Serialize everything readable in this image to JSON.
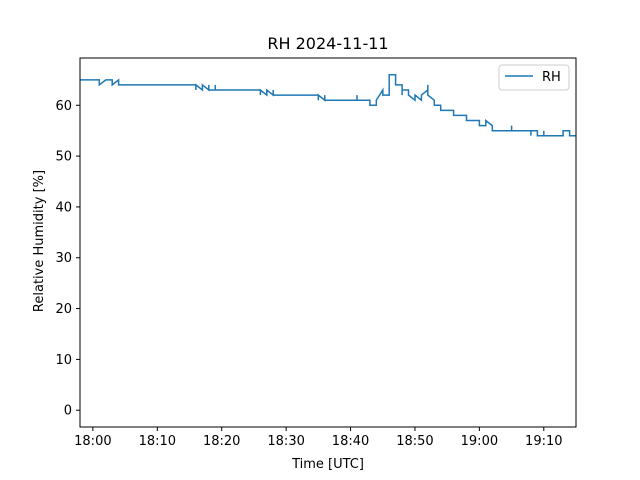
{
  "chart_data": {
    "type": "line",
    "title": "RH 2024-11-11",
    "xlabel": "Time [UTC]",
    "ylabel": "Relative Humidity [%]",
    "ylim": [
      -3.3,
      69.3
    ],
    "xlim_minutes": [
      -2,
      75
    ],
    "x_ticks": [
      {
        "t": 0,
        "label": "18:00"
      },
      {
        "t": 10,
        "label": "18:10"
      },
      {
        "t": 20,
        "label": "18:20"
      },
      {
        "t": 30,
        "label": "18:30"
      },
      {
        "t": 40,
        "label": "18:40"
      },
      {
        "t": 50,
        "label": "18:50"
      },
      {
        "t": 60,
        "label": "19:00"
      },
      {
        "t": 70,
        "label": "19:10"
      }
    ],
    "y_ticks": [
      0,
      10,
      20,
      30,
      40,
      50,
      60
    ],
    "grid": false,
    "legend": {
      "placement": "top-right",
      "entries": [
        "RH"
      ]
    },
    "series": [
      {
        "name": "RH",
        "color": "#1f77b4",
        "points": [
          [
            "17:58",
            65
          ],
          [
            "18:01",
            65
          ],
          [
            "18:01",
            64
          ],
          [
            "18:02",
            65
          ],
          [
            "18:03",
            65
          ],
          [
            "18:03",
            64
          ],
          [
            "18:04",
            65
          ],
          [
            "18:04",
            64
          ],
          [
            "18:16",
            64
          ],
          [
            "18:16",
            63
          ],
          [
            "18:16",
            64
          ],
          [
            "18:17",
            63
          ],
          [
            "18:17",
            64
          ],
          [
            "18:18",
            63
          ],
          [
            "18:18",
            64
          ],
          [
            "18:18",
            63
          ],
          [
            "18:19",
            63
          ],
          [
            "18:19",
            64
          ],
          [
            "18:19",
            63
          ],
          [
            "18:26",
            63
          ],
          [
            "18:26",
            62
          ],
          [
            "18:26",
            63
          ],
          [
            "18:27",
            62
          ],
          [
            "18:27",
            63
          ],
          [
            "18:28",
            62
          ],
          [
            "18:28",
            63
          ],
          [
            "18:28",
            62
          ],
          [
            "18:35",
            62
          ],
          [
            "18:35",
            61
          ],
          [
            "18:35",
            62
          ],
          [
            "18:36",
            61
          ],
          [
            "18:36",
            62
          ],
          [
            "18:36",
            61
          ],
          [
            "18:41",
            61
          ],
          [
            "18:41",
            62
          ],
          [
            "18:41",
            61
          ],
          [
            "18:43",
            61
          ],
          [
            "18:43",
            60
          ],
          [
            "18:44",
            60
          ],
          [
            "18:44",
            61
          ],
          [
            "18:45",
            63
          ],
          [
            "18:45",
            62
          ],
          [
            "18:46",
            62
          ],
          [
            "18:46",
            64
          ],
          [
            "18:46",
            66
          ],
          [
            "18:47",
            66
          ],
          [
            "18:47",
            65
          ],
          [
            "18:47",
            64
          ],
          [
            "18:48",
            64
          ],
          [
            "18:48",
            62
          ],
          [
            "18:48",
            63
          ],
          [
            "18:49",
            63
          ],
          [
            "18:49",
            62
          ],
          [
            "18:50",
            61
          ],
          [
            "18:50",
            62
          ],
          [
            "18:51",
            61
          ],
          [
            "18:51",
            62
          ],
          [
            "18:52",
            63
          ],
          [
            "18:52",
            64
          ],
          [
            "18:52",
            62
          ],
          [
            "18:53",
            61
          ],
          [
            "18:53",
            60
          ],
          [
            "18:54",
            60
          ],
          [
            "18:54",
            59
          ],
          [
            "18:56",
            59
          ],
          [
            "18:56",
            58
          ],
          [
            "18:58",
            58
          ],
          [
            "18:58",
            57
          ],
          [
            "19:00",
            57
          ],
          [
            "19:00",
            56
          ],
          [
            "19:01",
            56
          ],
          [
            "19:01",
            57
          ],
          [
            "19:02",
            56
          ],
          [
            "19:02",
            55
          ],
          [
            "19:05",
            55
          ],
          [
            "19:05",
            56
          ],
          [
            "19:05",
            55
          ],
          [
            "19:08",
            55
          ],
          [
            "19:08",
            54
          ],
          [
            "19:08",
            55
          ],
          [
            "19:09",
            55
          ],
          [
            "19:09",
            54
          ],
          [
            "19:10",
            54
          ],
          [
            "19:10",
            55
          ],
          [
            "19:10",
            54
          ],
          [
            "19:13",
            54
          ],
          [
            "19:13",
            55
          ],
          [
            "19:14",
            55
          ],
          [
            "19:14",
            54
          ],
          [
            "19:15",
            54
          ]
        ]
      }
    ]
  }
}
